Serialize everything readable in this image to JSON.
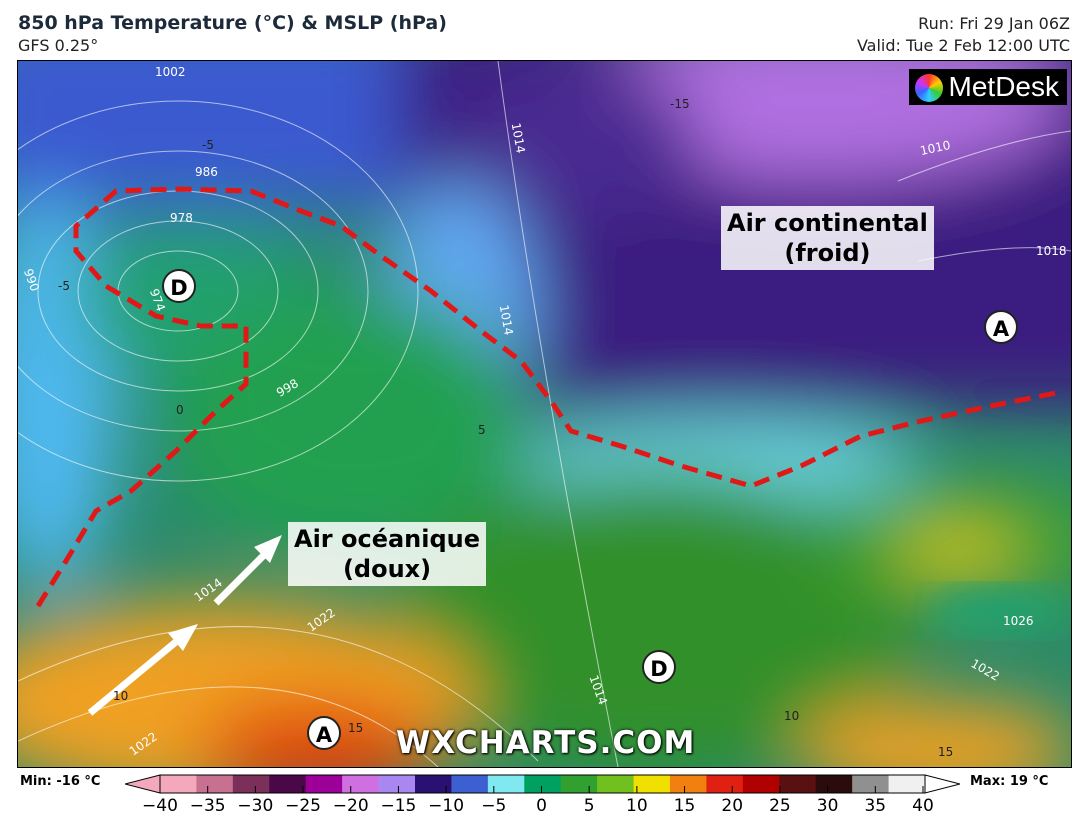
{
  "header": {
    "title": "850 hPa Temperature (°C) & MSLP (hPa)",
    "model": "GFS 0.25°",
    "run": "Run: Fri 29 Jan 06Z",
    "valid": "Valid: Tue 2 Feb 12:00 UTC"
  },
  "logo": "MetDesk",
  "watermark": "WXCHARTS.COM",
  "annotations": {
    "continental": "Air continental\n(froid)",
    "oceanic": "Air océanique\n(doux)"
  },
  "pressure_centers": [
    {
      "label": "D"
    },
    {
      "label": "A"
    },
    {
      "label": "D"
    },
    {
      "label": "A"
    }
  ],
  "isobar_labels": [
    "1002",
    "986",
    "978",
    "990",
    "974",
    "998",
    "1014",
    "1014",
    "1010",
    "1018",
    "1014",
    "1022",
    "1014",
    "1022",
    "1022",
    "1026"
  ],
  "isotherm_labels": [
    "-15",
    "-5",
    "-5",
    "0",
    "5",
    "10",
    "15",
    "15",
    "10"
  ],
  "colorbar": {
    "min_label": "Min: -16 °C",
    "max_label": "Max: 19 °C",
    "ticks": [
      "−40",
      "−35",
      "−30",
      "−25",
      "−20",
      "−15",
      "−10",
      "−5",
      "0",
      "5",
      "10",
      "15",
      "20",
      "25",
      "30",
      "35",
      "40"
    ],
    "colors": [
      "#f4a8bc",
      "#c8708f",
      "#7a3058",
      "#4a0848",
      "#9c0098",
      "#d070e0",
      "#a888f0",
      "#2a1070",
      "#3c60d0",
      "#80e8f0",
      "#00a060",
      "#30a030",
      "#70c020",
      "#f0e000",
      "#f08010",
      "#e02010",
      "#b00000",
      "#5a1010",
      "#2a0c0c",
      "#909090",
      "#f0f0f0"
    ]
  },
  "colors": {
    "boundary": "#e01818",
    "cold_air": "#3c1a78",
    "warm_air": "#f0a020",
    "mild_air": "#20a060"
  }
}
